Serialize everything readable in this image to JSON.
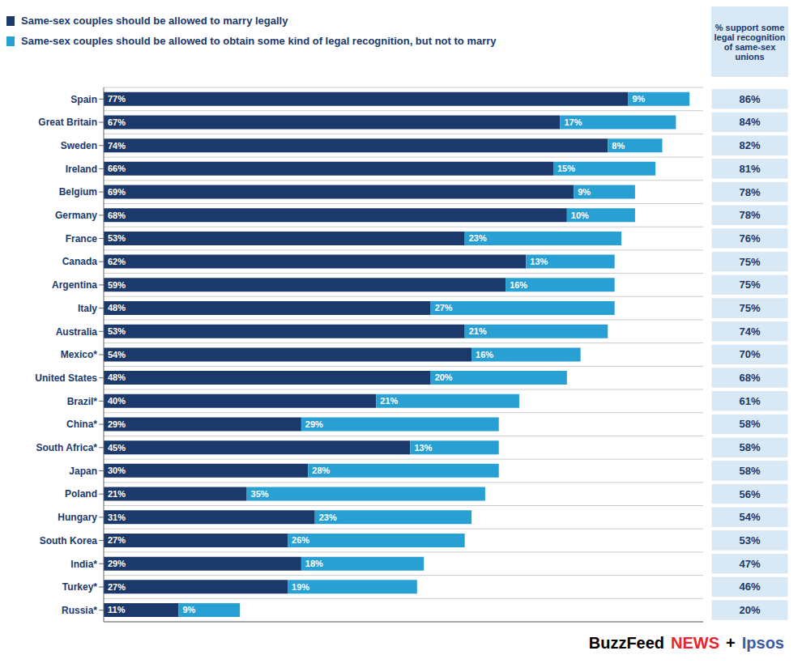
{
  "chart_data": {
    "type": "bar",
    "orientation": "horizontal",
    "stacked": true,
    "data_labels": true,
    "tick_labels": "y",
    "grid": true,
    "legend": "upper left",
    "categories": [
      "Spain",
      "Great Britain",
      "Sweden",
      "Ireland",
      "Belgium",
      "Germany",
      "France",
      "Canada",
      "Argentina",
      "Italy",
      "Australia",
      "Mexico*",
      "United States",
      "Brazil*",
      "China*",
      "South Africa*",
      "Japan",
      "Poland",
      "Hungary",
      "South Korea",
      "India*",
      "Turkey*",
      "Russia*"
    ],
    "xlim": [
      0,
      88
    ],
    "series": [
      {
        "name": "Same-sex couples should be allowed to marry legally",
        "color": "#1b3a6b",
        "values": [
          77,
          67,
          74,
          66,
          69,
          68,
          53,
          62,
          59,
          48,
          53,
          54,
          48,
          40,
          29,
          45,
          30,
          21,
          31,
          27,
          29,
          27,
          11
        ],
        "value_labels": [
          "77%",
          "67%",
          "74%",
          "66%",
          "69%",
          "68%",
          "53%",
          "62%",
          "59%",
          "48%",
          "53%",
          "54%",
          "48%",
          "40%",
          "29%",
          "45%",
          "30%",
          "21%",
          "31%",
          "27%",
          "29%",
          "27%",
          "11%"
        ]
      },
      {
        "name": "Same-sex couples should be allowed to obtain some kind of legal recognition, but not to marry",
        "color": "#29a0d4",
        "values": [
          9,
          17,
          8,
          15,
          9,
          10,
          23,
          13,
          16,
          27,
          21,
          16,
          20,
          21,
          29,
          13,
          28,
          35,
          23,
          26,
          18,
          19,
          9
        ],
        "value_labels": [
          "9%",
          "17%",
          "8%",
          "15%",
          "9%",
          "10%",
          "23%",
          "13%",
          "16%",
          "27%",
          "21%",
          "16%",
          "20%",
          "21%",
          "29%",
          "13%",
          "28%",
          "35%",
          "23%",
          "26%",
          "18%",
          "19%",
          "9%"
        ]
      }
    ],
    "total_column": {
      "title": "% support some\nlegal recognition\nof same-sex\nunions",
      "color": "#d9e8f5",
      "values": [
        86,
        84,
        82,
        81,
        78,
        78,
        76,
        75,
        75,
        75,
        74,
        70,
        68,
        61,
        58,
        58,
        58,
        56,
        54,
        53,
        47,
        46,
        20
      ],
      "value_labels": [
        "86%",
        "84%",
        "82%",
        "81%",
        "78%",
        "78%",
        "76%",
        "75%",
        "75%",
        "75%",
        "74%",
        "70%",
        "68%",
        "61%",
        "58%",
        "58%",
        "58%",
        "56%",
        "54%",
        "53%",
        "47%",
        "46%",
        "20%"
      ]
    },
    "annotations": [
      {
        "text": "BuzzFeed",
        "color": "#000000"
      },
      {
        "text": "NEWS",
        "color": "#e8252b"
      },
      {
        "text": "+",
        "color": "#000000"
      },
      {
        "text": "Ipsos",
        "color": "#3a5ba5"
      }
    ]
  }
}
